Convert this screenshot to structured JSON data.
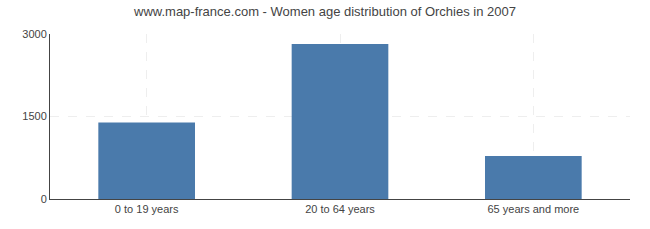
{
  "chart_data": {
    "type": "bar",
    "title": "www.map-france.com - Women age distribution of Orchies in 2007",
    "categories": [
      "0 to 19 years",
      "20 to 64 years",
      "65 years and more"
    ],
    "values": [
      1390,
      2820,
      780
    ],
    "color": "#4a7aab",
    "ylim": [
      0,
      3000
    ],
    "yticks": [
      0,
      1500,
      3000
    ],
    "grid": true
  }
}
